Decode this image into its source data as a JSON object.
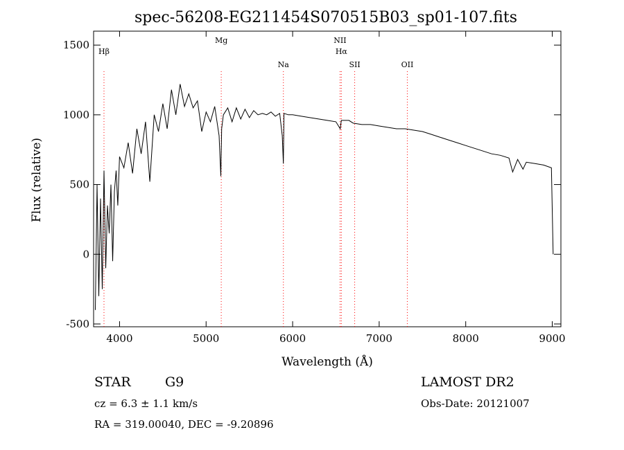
{
  "chart_data": {
    "type": "line",
    "title": "spec-56208-EG211454S070515B03_sp01-107.fits",
    "xlabel": "Wavelength (Å)",
    "ylabel": "Flux (relative)",
    "xlim": [
      3700,
      9100
    ],
    "ylim": [
      -520,
      1600
    ],
    "xticks": [
      4000,
      5000,
      6000,
      7000,
      8000,
      9000
    ],
    "yticks": [
      -500,
      0,
      500,
      1000,
      1500
    ],
    "grid": false,
    "line_color": "#000000",
    "marker_color": "#ff0000",
    "spectral_lines": [
      {
        "label": "Hβ",
        "wavelength": 3820,
        "tier": 1
      },
      {
        "label": "Mg",
        "wavelength": 5175,
        "tier": 0
      },
      {
        "label": "Na",
        "wavelength": 5893,
        "tier": 2
      },
      {
        "label": "NII",
        "wavelength": 6548,
        "tier": 0
      },
      {
        "label": "Hα",
        "wavelength": 6563,
        "tier": 1
      },
      {
        "label": "SII",
        "wavelength": 6717,
        "tier": 2
      },
      {
        "label": "OII",
        "wavelength": 7325,
        "tier": 2
      }
    ],
    "series": [
      {
        "x": [
          3720,
          3740,
          3760,
          3780,
          3800,
          3820,
          3840,
          3860,
          3880,
          3900,
          3920,
          3940,
          3960,
          3980,
          4000,
          4050,
          4100,
          4150,
          4200,
          4250,
          4300,
          4350,
          4400,
          4450,
          4500,
          4550,
          4600,
          4650,
          4700,
          4750,
          4800,
          4850,
          4900,
          4950,
          5000,
          5050,
          5100,
          5150,
          5170,
          5180,
          5200,
          5250,
          5300,
          5350,
          5400,
          5450,
          5500,
          5550,
          5600,
          5650,
          5700,
          5750,
          5800,
          5850,
          5880,
          5893,
          5900,
          5950,
          6000,
          6100,
          6200,
          6300,
          6400,
          6500,
          6550,
          6563,
          6580,
          6650,
          6700,
          6800,
          6900,
          7000,
          7100,
          7200,
          7300,
          7400,
          7500,
          7600,
          7700,
          7800,
          7900,
          8000,
          8100,
          8200,
          8300,
          8400,
          8500,
          8542,
          8600,
          8662,
          8700,
          8800,
          8900,
          8990,
          9010
        ],
        "y": [
          -400,
          500,
          -300,
          400,
          -250,
          600,
          -100,
          350,
          150,
          500,
          -50,
          450,
          600,
          350,
          700,
          620,
          800,
          580,
          900,
          720,
          950,
          520,
          1000,
          880,
          1080,
          900,
          1180,
          1000,
          1220,
          1060,
          1150,
          1050,
          1100,
          880,
          1020,
          950,
          1060,
          850,
          560,
          900,
          1000,
          1050,
          950,
          1050,
          970,
          1040,
          980,
          1030,
          1000,
          1010,
          1000,
          1020,
          990,
          1010,
          850,
          650,
          1010,
          1000,
          1000,
          990,
          980,
          970,
          960,
          950,
          900,
          960,
          960,
          960,
          940,
          930,
          930,
          920,
          910,
          900,
          900,
          890,
          880,
          860,
          840,
          820,
          800,
          780,
          760,
          740,
          720,
          710,
          690,
          590,
          680,
          610,
          660,
          650,
          640,
          620,
          0
        ]
      }
    ]
  },
  "footer": {
    "object_class": "STAR",
    "subclass": "G9",
    "cz": "cz = 6.3 ± 1.1 km/s",
    "coords": "RA = 319.00040, DEC =  -9.20896",
    "survey": "LAMOST DR2",
    "obs_date": "Obs-Date: 20121007"
  }
}
